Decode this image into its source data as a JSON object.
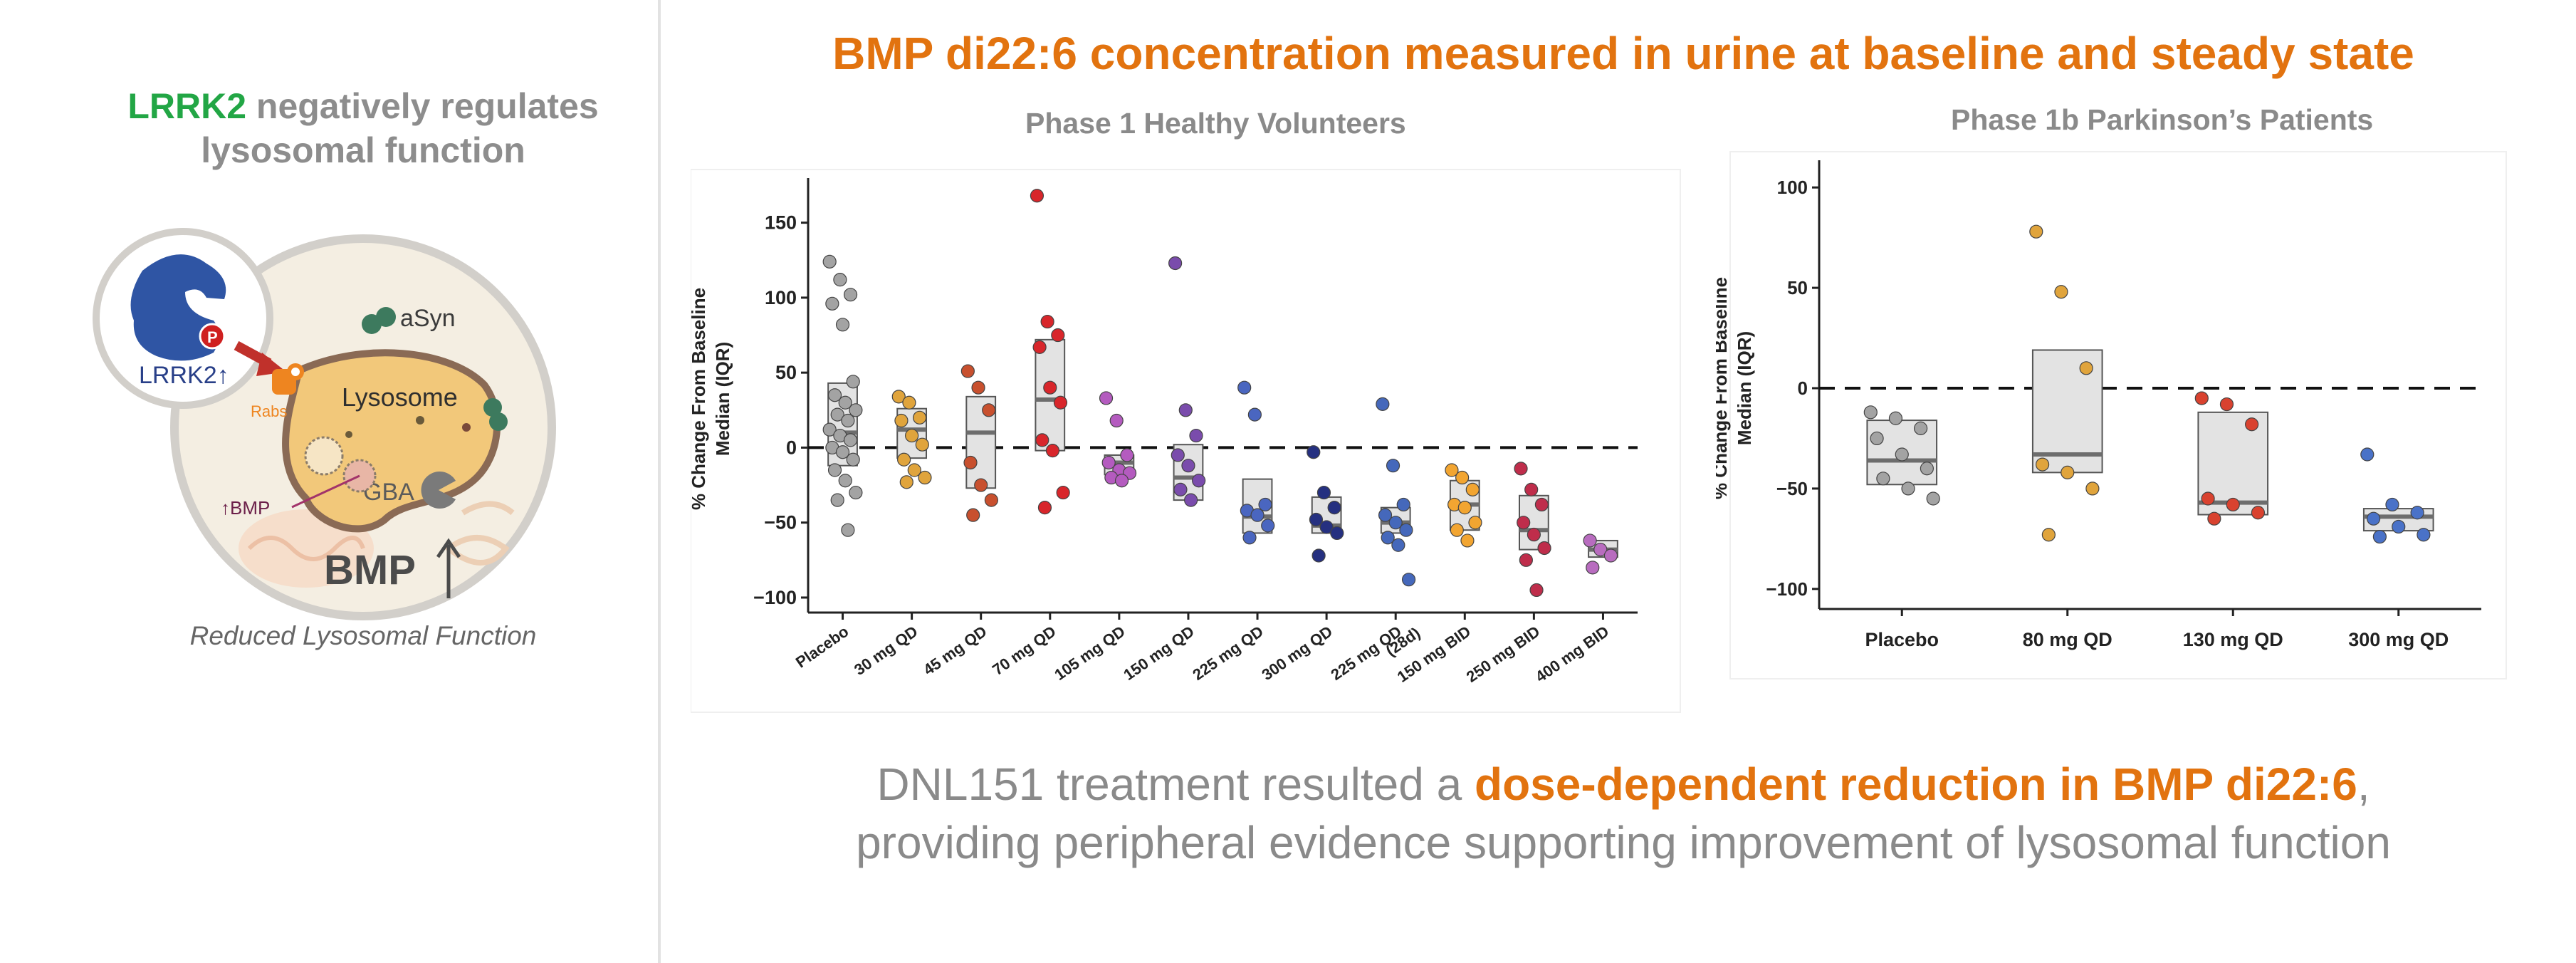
{
  "left_panel": {
    "title_highlight": "LRRK2",
    "title_rest": " negatively regulates lysosomal function",
    "labels": {
      "asyn": "aSyn",
      "lrrk2": "LRRK2↑",
      "phospho": "P",
      "rabs": "Rabs",
      "lysosome": "Lysosome",
      "bmp_small": "↑BMP",
      "gba": "GBA",
      "bmp_big": "BMP"
    },
    "caption": "Reduced Lysosomal Function"
  },
  "main_title": "BMP di22:6 concentration measured in urine at baseline and steady state",
  "chart_data": [
    {
      "type": "scatter",
      "subtitle": "Phase 1 Healthy Volunteers",
      "ylabel": "% Change From Baseline\nMedian (IQR)",
      "ylim": [
        -110,
        175
      ],
      "yticks": [
        -100,
        -50,
        0,
        50,
        100,
        150
      ],
      "reference_line": 0,
      "categories": [
        "Placebo",
        "30 mg QD",
        "45 mg QD",
        "70 mg QD",
        "105 mg QD",
        "150 mg QD",
        "225 mg QD",
        "300 mg QD",
        "225 mg QD\n(28d)",
        "150 mg BID",
        "250 mg BID",
        "400 mg BID"
      ],
      "colors": [
        "#a3a3a3",
        "#e0a43c",
        "#c8502e",
        "#d8262b",
        "#b45bbf",
        "#7a4cac",
        "#4a66c0",
        "#253080",
        "#4568bb",
        "#f2a531",
        "#bf2d4b",
        "#b86cbf"
      ],
      "boxes": [
        {
          "q1": -12,
          "median": 10,
          "q3": 43
        },
        {
          "q1": -7,
          "median": 12,
          "q3": 26
        },
        {
          "q1": -27,
          "median": 10,
          "q3": 34
        },
        {
          "q1": -2,
          "median": 32,
          "q3": 72
        },
        {
          "q1": -18,
          "median": -10,
          "q3": -5
        },
        {
          "q1": -35,
          "median": -20,
          "q3": 2
        },
        {
          "q1": -57,
          "median": -46,
          "q3": -21
        },
        {
          "q1": -57,
          "median": -52,
          "q3": -33
        },
        {
          "q1": -57,
          "median": -50,
          "q3": -40
        },
        {
          "q1": -55,
          "median": -38,
          "q3": -22
        },
        {
          "q1": -68,
          "median": -55,
          "q3": -32
        },
        {
          "q1": -73,
          "median": -68,
          "q3": -62
        }
      ],
      "points": [
        [
          124,
          112,
          102,
          96,
          82,
          44,
          35,
          30,
          25,
          22,
          18,
          12,
          8,
          5,
          0,
          -3,
          -8,
          -15,
          -22,
          -30,
          -35,
          -55
        ],
        [
          34,
          30,
          20,
          18,
          8,
          2,
          -8,
          -15,
          -20,
          -23
        ],
        [
          51,
          40,
          25,
          -10,
          -25,
          -35,
          -45
        ],
        [
          168,
          84,
          75,
          67,
          40,
          30,
          5,
          -2,
          -30,
          -40
        ],
        [
          33,
          18,
          -5,
          -10,
          -15,
          -17,
          -20,
          -22
        ],
        [
          123,
          25,
          8,
          -5,
          -12,
          -22,
          -28,
          -35
        ],
        [
          40,
          22,
          -38,
          -42,
          -45,
          -52,
          -60
        ],
        [
          -3,
          -30,
          -40,
          -48,
          -53,
          -57,
          -72
        ],
        [
          29,
          -12,
          -38,
          -45,
          -50,
          -55,
          -60,
          -65,
          -88
        ],
        [
          -15,
          -20,
          -28,
          -38,
          -40,
          -50,
          -55,
          -62
        ],
        [
          -14,
          -28,
          -38,
          -50,
          -58,
          -67,
          -75,
          -95
        ],
        [
          -62,
          -68,
          -72,
          -80
        ]
      ]
    },
    {
      "type": "scatter",
      "subtitle": "Phase 1b Parkinson’s Patients",
      "ylabel": "% Change From Baseline\nMedian (IQR)",
      "ylim": [
        -110,
        110
      ],
      "yticks": [
        -100,
        -50,
        0,
        50,
        100
      ],
      "reference_line": 0,
      "categories": [
        "Placebo",
        "80 mg QD",
        "130 mg QD",
        "300 mg QD"
      ],
      "colors": [
        "#a3a3a3",
        "#e0a43c",
        "#d9422f",
        "#4a72c8"
      ],
      "boxes": [
        {
          "q1": -48,
          "median": -36,
          "q3": -16
        },
        {
          "q1": -42,
          "median": -33,
          "q3": 19
        },
        {
          "q1": -63,
          "median": -57,
          "q3": -12
        },
        {
          "q1": -71,
          "median": -64,
          "q3": -60
        }
      ],
      "points": [
        [
          -12,
          -15,
          -20,
          -25,
          -33,
          -40,
          -45,
          -50,
          -55
        ],
        [
          78,
          48,
          10,
          -38,
          -42,
          -50,
          -73
        ],
        [
          -5,
          -8,
          -18,
          -55,
          -58,
          -62,
          -65
        ],
        [
          -33,
          -58,
          -62,
          -65,
          -69,
          -73,
          -74
        ]
      ]
    }
  ],
  "summary": {
    "part1": "DNL151 treatment resulted a ",
    "highlight": "dose-dependent reduction in BMP di22:6",
    "part2": ",",
    "line2": "providing peripheral evidence supporting improvement of lysosomal function"
  }
}
